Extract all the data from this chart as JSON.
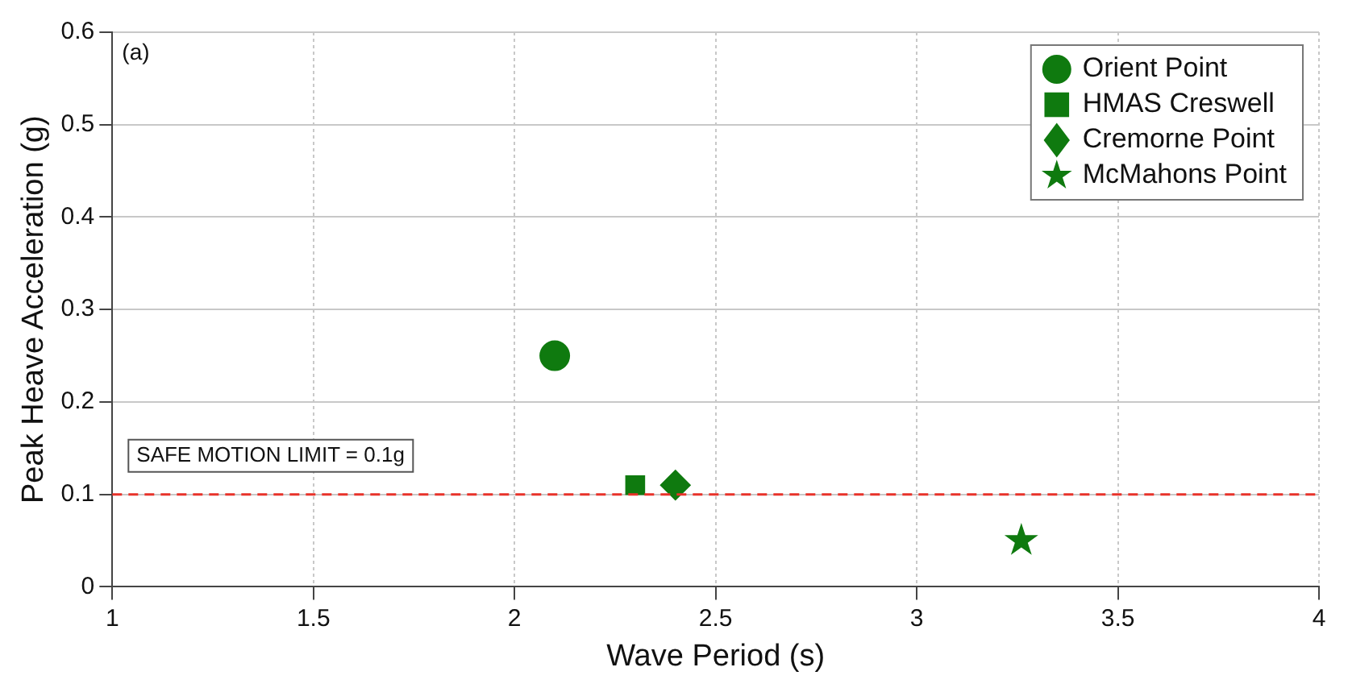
{
  "chart_data": {
    "type": "scatter",
    "xlabel": "Wave Period (s)",
    "ylabel": "Peak Heave Acceleration (g)",
    "xlim": [
      1,
      4
    ],
    "xticks": [
      1,
      1.5,
      2,
      2.5,
      3,
      3.5,
      4
    ],
    "ylim": [
      0,
      0.6
    ],
    "yticks": [
      0,
      0.1,
      0.2,
      0.3,
      0.4,
      0.5,
      0.6
    ],
    "grid": true,
    "legend": "top right",
    "series": [
      {
        "name": "Orient Point",
        "color": "#0f7a0f",
        "marker": "circle",
        "x": [
          2.1
        ],
        "values": [
          0.25
        ]
      },
      {
        "name": "HMAS Creswell",
        "color": "#0f7a0f",
        "marker": "square",
        "x": [
          2.3
        ],
        "values": [
          0.11
        ]
      },
      {
        "name": "Cremorne Point",
        "color": "#0f7a0f",
        "marker": "diamond",
        "x": [
          2.4
        ],
        "values": [
          0.11
        ]
      },
      {
        "name": "McMahons Point",
        "color": "#0f7a0f",
        "marker": "star",
        "x": [
          3.26
        ],
        "values": [
          0.05
        ]
      }
    ],
    "ref_lines": [
      {
        "axis": "y",
        "value": 0.1,
        "label": "SAFE MOTION LIMIT = 0.1g",
        "color": "#e8322a",
        "line_style": "dashed"
      }
    ],
    "annotations": [
      "(a)"
    ]
  }
}
